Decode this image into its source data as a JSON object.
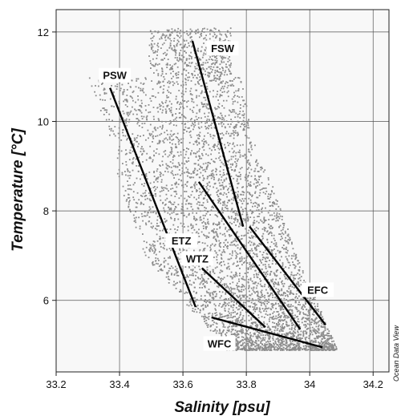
{
  "chart_data": {
    "type": "scatter",
    "title": "",
    "xlabel": "Salinity [psu]",
    "ylabel": "Temperature [°C]",
    "xlim": [
      33.2,
      34.25
    ],
    "ylim": [
      4.4,
      12.5
    ],
    "xticks": [
      33.2,
      33.4,
      33.6,
      33.8,
      34,
      34.2
    ],
    "xtick_labels": [
      "33.2",
      "33.4",
      "33.6",
      "33.8",
      "34",
      "34.2"
    ],
    "yticks": [
      6,
      8,
      10,
      12
    ],
    "ytick_labels": [
      "6",
      "8",
      "10",
      "12"
    ],
    "grid": true,
    "point_color": "#8c8c8c",
    "point_cloud": {
      "description_points": [
        {
          "x": 33.55,
          "y": 12.0
        },
        {
          "x": 33.27,
          "y": 10.7
        },
        {
          "x": 33.6,
          "y": 10.0
        },
        {
          "x": 33.8,
          "y": 8.0
        },
        {
          "x": 33.9,
          "y": 6.5
        },
        {
          "x": 34.0,
          "y": 5.2
        },
        {
          "x": 33.62,
          "y": 5.85
        },
        {
          "x": 34.05,
          "y": 4.9
        },
        {
          "x": 33.45,
          "y": 7.0
        }
      ]
    },
    "lines": [
      {
        "label": "FSW",
        "x": [
          33.63,
          33.79
        ],
        "y": [
          11.8,
          7.65
        ]
      },
      {
        "label": "PSW",
        "x": [
          33.37,
          33.64
        ],
        "y": [
          10.75,
          5.85
        ]
      },
      {
        "label": "ETZ",
        "x": [
          33.65,
          33.97
        ],
        "y": [
          8.65,
          5.35
        ]
      },
      {
        "label": "WTZ",
        "x": [
          33.66,
          33.86
        ],
        "y": [
          6.72,
          5.4
        ]
      },
      {
        "label": "EFC",
        "x": [
          33.81,
          34.05
        ],
        "y": [
          7.65,
          5.45
        ]
      },
      {
        "label": "WFC",
        "x": [
          33.69,
          34.04
        ],
        "y": [
          5.62,
          4.95
        ]
      }
    ],
    "annotations": [
      {
        "text": "FSW",
        "x": 33.72,
        "y": 11.6
      },
      {
        "text": "PSW",
        "x": 33.38,
        "y": 11.0
      },
      {
        "text": "ETZ",
        "x": 33.59,
        "y": 7.3
      },
      {
        "text": "WTZ",
        "x": 33.64,
        "y": 6.9
      },
      {
        "text": "EFC",
        "x": 34.02,
        "y": 6.2
      },
      {
        "text": "WFC",
        "x": 33.71,
        "y": 5.0
      }
    ],
    "watermark": "Ocean Data View",
    "legend": "none"
  }
}
